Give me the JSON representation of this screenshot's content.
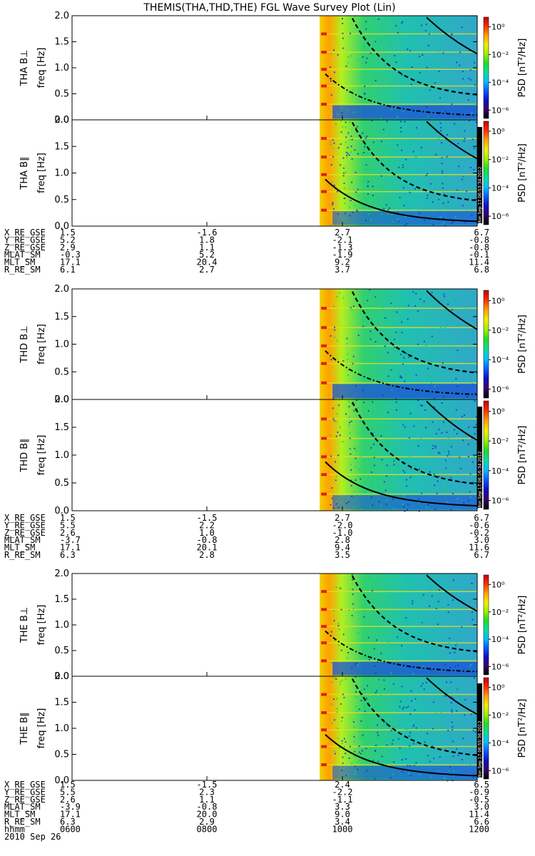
{
  "chart_data": {
    "type": "heatmap",
    "title": "THEMIS(THA,THD,THE) FGL Wave Survey Plot (Lin)",
    "ylabel_common": "freq [Hz]",
    "ylim": [
      0,
      2.0
    ],
    "yticks": [
      "0.0",
      "0.5",
      "1.0",
      "1.5",
      "2.0"
    ],
    "colorbar": {
      "label": "PSD [nT²/Hz]",
      "scale": "log",
      "ticks": [
        "10⁰",
        "10⁻²",
        "10⁻⁴",
        "10⁻⁶"
      ],
      "tick_exponents": [
        0,
        -2,
        -4,
        -6
      ],
      "colors": [
        "#000000",
        "#3a006a",
        "#1010c8",
        "#0060ff",
        "#00c0ff",
        "#00e0a0",
        "#20e020",
        "#a0f000",
        "#f0f000",
        "#ffa000",
        "#ff3000",
        "#c00000"
      ]
    },
    "xaxis": {
      "label_row": "hhmm",
      "date": "2010 Sep 26",
      "ticks": [
        "0600",
        "0800",
        "1000",
        "1200"
      ]
    },
    "data_start": "0940",
    "panels": [
      {
        "label": "THA B⊥",
        "probe": "THA",
        "kind": "perp",
        "stamp": ""
      },
      {
        "label": "THA B∥",
        "probe": "THA",
        "kind": "par",
        "stamp": "Mon Sep 17 06:53:34 2012"
      },
      {
        "label": "THD B⊥",
        "probe": "THD",
        "kind": "perp",
        "stamp": ""
      },
      {
        "label": "THD B∥",
        "probe": "THD",
        "kind": "par",
        "stamp": "Mon Sep 17 06:16:34 2012"
      },
      {
        "label": "THE B⊥",
        "probe": "THE",
        "kind": "perp",
        "stamp": ""
      },
      {
        "label": "THE B∥",
        "probe": "THE",
        "kind": "par",
        "stamp": "Mon Sep 17 06:55:36 2012"
      }
    ],
    "ephemeris": [
      {
        "probe": "THA",
        "rows": [
          {
            "name": "X_RE_GSE",
            "values": [
              "1.5",
              "-1.6",
              "2.7",
              "6.7"
            ]
          },
          {
            "name": "Y_RE_GSE",
            "values": [
              "5.2",
              "1.8",
              "-2.1",
              "-0.8"
            ]
          },
          {
            "name": "Z_RE_GSE",
            "values": [
              "2.9",
              "1.1",
              "-1.3",
              "-0.8"
            ]
          },
          {
            "name": "MLAT_SM",
            "values": [
              "-0.3",
              "5.2",
              "-1.9",
              "-0.1"
            ]
          },
          {
            "name": "MLT_SM",
            "values": [
              "17.1",
              "20.4",
              "9.2",
              "11.4"
            ]
          },
          {
            "name": "R_RE_SM",
            "values": [
              "6.1",
              "2.7",
              "3.7",
              "6.8"
            ]
          }
        ]
      },
      {
        "probe": "THD",
        "rows": [
          {
            "name": "X_RE_GSE",
            "values": [
              "1.5",
              "-1.5",
              "2.7",
              "6.7"
            ]
          },
          {
            "name": "Y_RE_GSE",
            "values": [
              "5.5",
              "2.2",
              "-2.0",
              "-0.6"
            ]
          },
          {
            "name": "Z_RE_GSE",
            "values": [
              "2.6",
              "1.0",
              "-1.0",
              "-0.2"
            ]
          },
          {
            "name": "MLAT_SM",
            "values": [
              "-3.7",
              "-0.8",
              "2.8",
              "3.0"
            ]
          },
          {
            "name": "MLT_SM",
            "values": [
              "17.1",
              "20.1",
              "9.4",
              "11.6"
            ]
          },
          {
            "name": "R_RE_SM",
            "values": [
              "6.3",
              "2.8",
              "3.5",
              "6.7"
            ]
          }
        ]
      },
      {
        "probe": "THE",
        "rows": [
          {
            "name": "X_RE_GSE",
            "values": [
              "1.5",
              "-1.5",
              "2.4",
              "6.5"
            ]
          },
          {
            "name": "Y_RE_GSE",
            "values": [
              "5.5",
              "2.3",
              "-2.2",
              "-0.9"
            ]
          },
          {
            "name": "Z_RE_GSE",
            "values": [
              "2.6",
              "1.1",
              "-1.1",
              "-0.5"
            ]
          },
          {
            "name": "MLAT_SM",
            "values": [
              "-3.9",
              "-0.8",
              "3.3",
              "3.0"
            ]
          },
          {
            "name": "MLT_SM",
            "values": [
              "17.1",
              "20.0",
              "9.0",
              "11.4"
            ]
          },
          {
            "name": "R_RE_SM",
            "values": [
              "6.3",
              "2.9",
              "3.4",
              "6.6"
            ]
          }
        ]
      }
    ]
  }
}
